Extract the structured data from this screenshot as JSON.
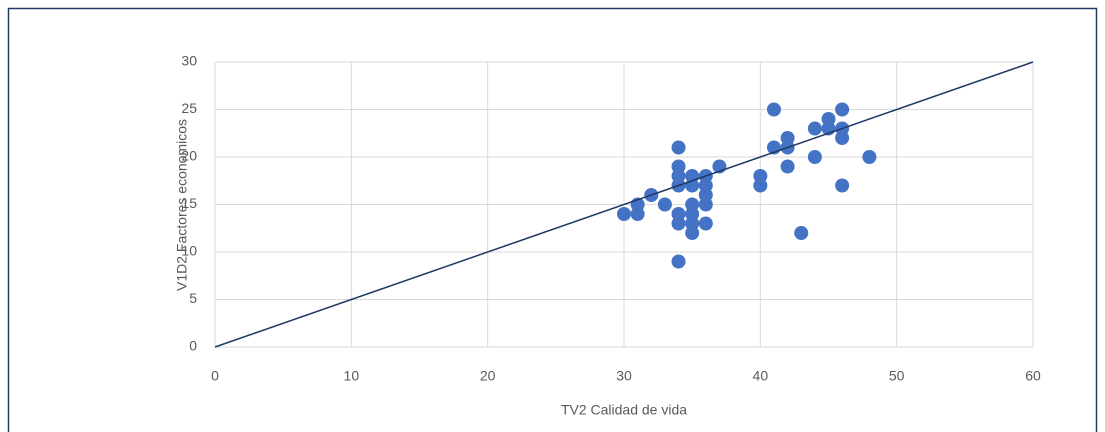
{
  "chart_data": {
    "type": "scatter",
    "x_label": "TV2 Calidad de vida",
    "y_label": "V1D2 Factores economicos",
    "series": [
      {
        "color": "#4472c4",
        "x": [
          30,
          31,
          31,
          32,
          33,
          34,
          34,
          34,
          34,
          34,
          34,
          34,
          35,
          35,
          35,
          35,
          35,
          35,
          36,
          36,
          36,
          36,
          36,
          37,
          40,
          40,
          41,
          41,
          42,
          42,
          42,
          43,
          44,
          44,
          45,
          45,
          46,
          46,
          46,
          46,
          48
        ],
        "values": [
          14,
          15,
          14,
          16,
          15,
          21,
          19,
          18,
          17,
          14,
          13,
          9,
          18,
          17,
          15,
          14,
          13,
          12,
          18,
          17,
          16,
          15,
          13,
          19,
          18,
          17,
          25,
          21,
          22,
          21,
          19,
          12,
          23,
          20,
          24,
          23,
          25,
          23,
          22,
          17,
          20
        ]
      }
    ],
    "trendline": {
      "color": "#1f3864",
      "x": [
        0,
        60
      ],
      "values": [
        0,
        30
      ]
    },
    "xlim": [
      0,
      60
    ],
    "xticks": [
      0,
      10,
      20,
      30,
      40,
      50,
      60
    ],
    "ylim": [
      0,
      30
    ],
    "yticks": [
      0,
      5,
      10,
      15,
      20,
      25,
      30
    ],
    "grid": true
  }
}
